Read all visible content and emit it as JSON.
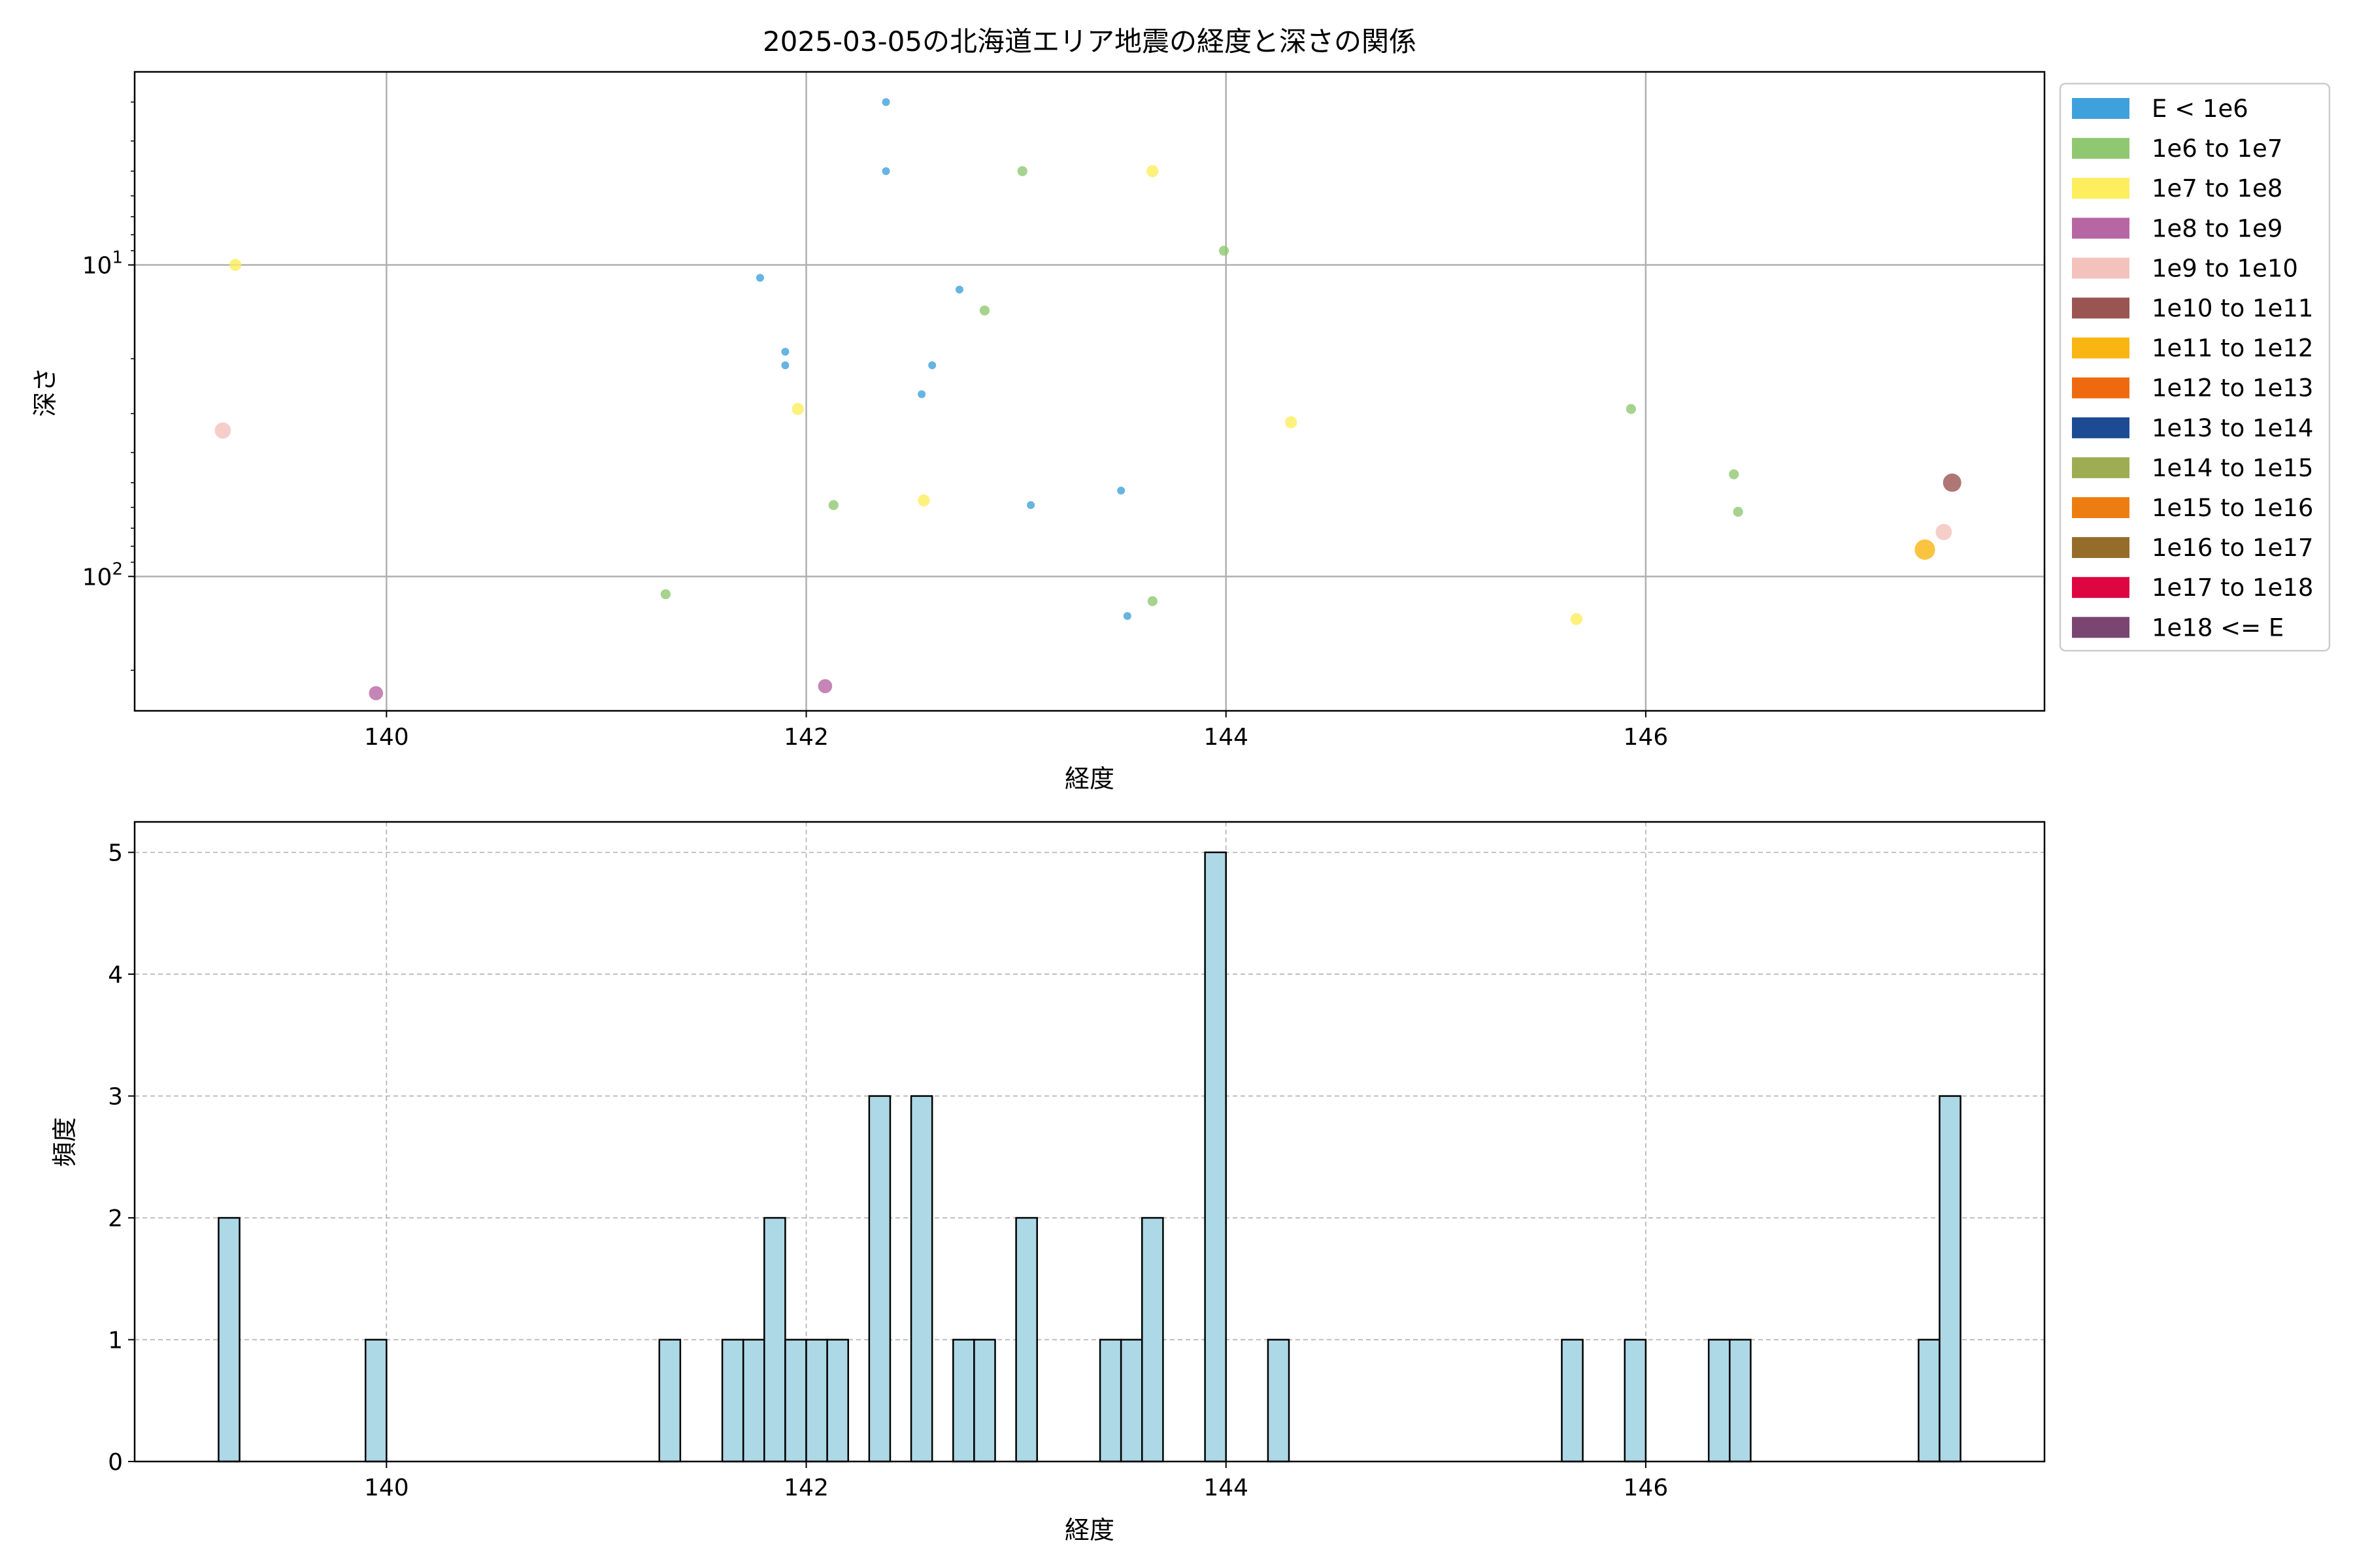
{
  "chart_data": [
    {
      "type": "scatter",
      "title": "2025-03-05の北海道エリア地震の経度と深さの関係",
      "xlabel": "経度",
      "ylabel": "深さ",
      "xlim": [
        138.8,
        147.9
      ],
      "ylim": [
        270,
        2.4
      ],
      "yscale": "log",
      "y_inverted": true,
      "grid": true,
      "x_ticks": [
        140,
        142,
        144,
        146
      ],
      "y_ticks": [
        {
          "value": 10,
          "base": "10",
          "exp": "1"
        },
        {
          "value": 100,
          "base": "10",
          "exp": "2"
        }
      ],
      "legend_position": "outside-right",
      "legend": [
        {
          "label": "E < 1e6",
          "color": "#3fa1db"
        },
        {
          "label": "1e6 to 1e7",
          "color": "#90c872"
        },
        {
          "label": "1e7 to 1e8",
          "color": "#fcee5d"
        },
        {
          "label": "1e8 to 1e9",
          "color": "#b766a4"
        },
        {
          "label": "1e9 to 1e10",
          "color": "#f4c2bc"
        },
        {
          "label": "1e10 to 1e11",
          "color": "#9a5552"
        },
        {
          "label": "1e11 to 1e12",
          "color": "#f9b512"
        },
        {
          "label": "1e12 to 1e13",
          "color": "#ef6a0f"
        },
        {
          "label": "1e13 to 1e14",
          "color": "#1c4b93"
        },
        {
          "label": "1e14 to 1e15",
          "color": "#9ead52"
        },
        {
          "label": "1e15 to 1e16",
          "color": "#ee7d11"
        },
        {
          "label": "1e16 to 1e17",
          "color": "#956c2a"
        },
        {
          "label": "1e17 to 1e18",
          "color": "#de0641"
        },
        {
          "label": "1e18 <= E",
          "color": "#7a4571"
        }
      ],
      "points": [
        {
          "x": 142.38,
          "y": 3.0,
          "class": 0
        },
        {
          "x": 142.38,
          "y": 5.0,
          "class": 0
        },
        {
          "x": 141.78,
          "y": 11.0,
          "class": 0
        },
        {
          "x": 142.73,
          "y": 12.0,
          "class": 0
        },
        {
          "x": 141.9,
          "y": 19.0,
          "class": 0
        },
        {
          "x": 141.9,
          "y": 21.0,
          "class": 0
        },
        {
          "x": 142.6,
          "y": 21.0,
          "class": 0
        },
        {
          "x": 142.55,
          "y": 26.0,
          "class": 0
        },
        {
          "x": 143.5,
          "y": 53.0,
          "class": 0
        },
        {
          "x": 143.07,
          "y": 59.0,
          "class": 0
        },
        {
          "x": 143.53,
          "y": 134.0,
          "class": 0
        },
        {
          "x": 143.03,
          "y": 5.0,
          "class": 1
        },
        {
          "x": 142.85,
          "y": 14.0,
          "class": 1
        },
        {
          "x": 143.99,
          "y": 9.0,
          "class": 1
        },
        {
          "x": 145.93,
          "y": 29.0,
          "class": 1
        },
        {
          "x": 146.42,
          "y": 47.0,
          "class": 1
        },
        {
          "x": 146.44,
          "y": 62.0,
          "class": 1
        },
        {
          "x": 142.13,
          "y": 59.0,
          "class": 1
        },
        {
          "x": 141.33,
          "y": 114.0,
          "class": 1
        },
        {
          "x": 143.65,
          "y": 120.0,
          "class": 1
        },
        {
          "x": 139.28,
          "y": 10.0,
          "class": 2
        },
        {
          "x": 143.65,
          "y": 5.0,
          "class": 2
        },
        {
          "x": 141.96,
          "y": 29.0,
          "class": 2
        },
        {
          "x": 144.31,
          "y": 32.0,
          "class": 2
        },
        {
          "x": 142.56,
          "y": 57.0,
          "class": 2
        },
        {
          "x": 145.67,
          "y": 137.0,
          "class": 2
        },
        {
          "x": 139.95,
          "y": 237.0,
          "class": 3
        },
        {
          "x": 142.09,
          "y": 225.0,
          "class": 3
        },
        {
          "x": 139.22,
          "y": 34.0,
          "class": 4
        },
        {
          "x": 147.42,
          "y": 72.0,
          "class": 4
        },
        {
          "x": 147.46,
          "y": 50.0,
          "class": 5
        },
        {
          "x": 147.33,
          "y": 82.0,
          "class": 6
        }
      ]
    },
    {
      "type": "bar",
      "title": "",
      "xlabel": "経度",
      "ylabel": "頻度",
      "xlim": [
        138.8,
        147.9
      ],
      "ylim": [
        0,
        5.25
      ],
      "grid": "dashed",
      "x_ticks": [
        140,
        142,
        144,
        146
      ],
      "y_ticks": [
        0,
        1,
        2,
        3,
        4,
        5
      ],
      "bar_color": "#add8e6",
      "bar_edge_color": "#000000",
      "bin_width": 0.1,
      "bins": [
        {
          "x": 139.2,
          "count": 2
        },
        {
          "x": 139.9,
          "count": 1
        },
        {
          "x": 141.3,
          "count": 1
        },
        {
          "x": 141.6,
          "count": 1
        },
        {
          "x": 141.7,
          "count": 1
        },
        {
          "x": 141.8,
          "count": 2
        },
        {
          "x": 141.9,
          "count": 1
        },
        {
          "x": 142.0,
          "count": 1
        },
        {
          "x": 142.1,
          "count": 1
        },
        {
          "x": 142.3,
          "count": 3
        },
        {
          "x": 142.5,
          "count": 3
        },
        {
          "x": 142.7,
          "count": 1
        },
        {
          "x": 142.8,
          "count": 1
        },
        {
          "x": 143.0,
          "count": 2
        },
        {
          "x": 143.4,
          "count": 1
        },
        {
          "x": 143.5,
          "count": 1
        },
        {
          "x": 143.6,
          "count": 2
        },
        {
          "x": 143.9,
          "count": 5
        },
        {
          "x": 144.2,
          "count": 1
        },
        {
          "x": 145.6,
          "count": 1
        },
        {
          "x": 145.9,
          "count": 1
        },
        {
          "x": 146.3,
          "count": 1
        },
        {
          "x": 146.4,
          "count": 1
        },
        {
          "x": 147.3,
          "count": 1
        },
        {
          "x": 147.4,
          "count": 3
        }
      ]
    }
  ]
}
